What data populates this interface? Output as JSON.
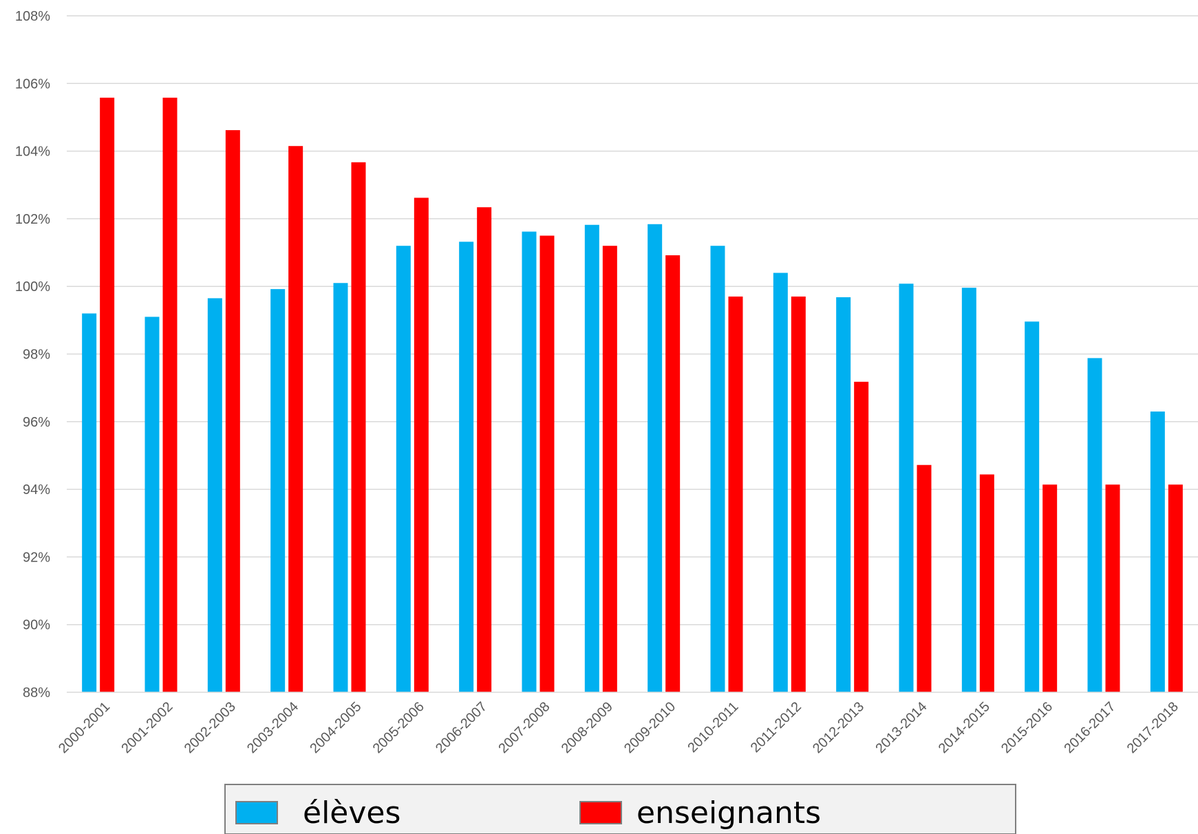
{
  "chart_data": {
    "type": "bar",
    "categories": [
      "2000-2001",
      "2001-2002",
      "2002-2003",
      "2003-2004",
      "2004-2005",
      "2005-2006",
      "2006-2007",
      "2007-2008",
      "2008-2009",
      "2009-2010",
      "2010-2011",
      "2011-2012",
      "2012-2013",
      "2013-2014",
      "2014-2015",
      "2015-2016",
      "2016-2017",
      "2017-2018"
    ],
    "series": [
      {
        "name": "élèves",
        "color": "#00b0f0",
        "values": [
          99.2,
          99.1,
          99.65,
          99.92,
          100.1,
          101.2,
          101.32,
          101.62,
          101.82,
          101.84,
          101.2,
          100.4,
          99.68,
          100.08,
          99.96,
          98.96,
          97.88,
          96.3
        ]
      },
      {
        "name": "enseignants",
        "color": "#ff0000",
        "values": [
          105.58,
          105.58,
          104.62,
          104.15,
          103.67,
          102.62,
          102.34,
          101.5,
          101.2,
          100.92,
          99.7,
          99.7,
          97.18,
          94.72,
          94.44,
          94.14,
          94.14,
          94.14
        ]
      }
    ],
    "yticks": [
      "88%",
      "90%",
      "92%",
      "94%",
      "96%",
      "98%",
      "100%",
      "102%",
      "104%",
      "106%",
      "108%"
    ],
    "ylim": [
      88,
      108
    ],
    "grid": true,
    "legend_position": "bottom"
  }
}
